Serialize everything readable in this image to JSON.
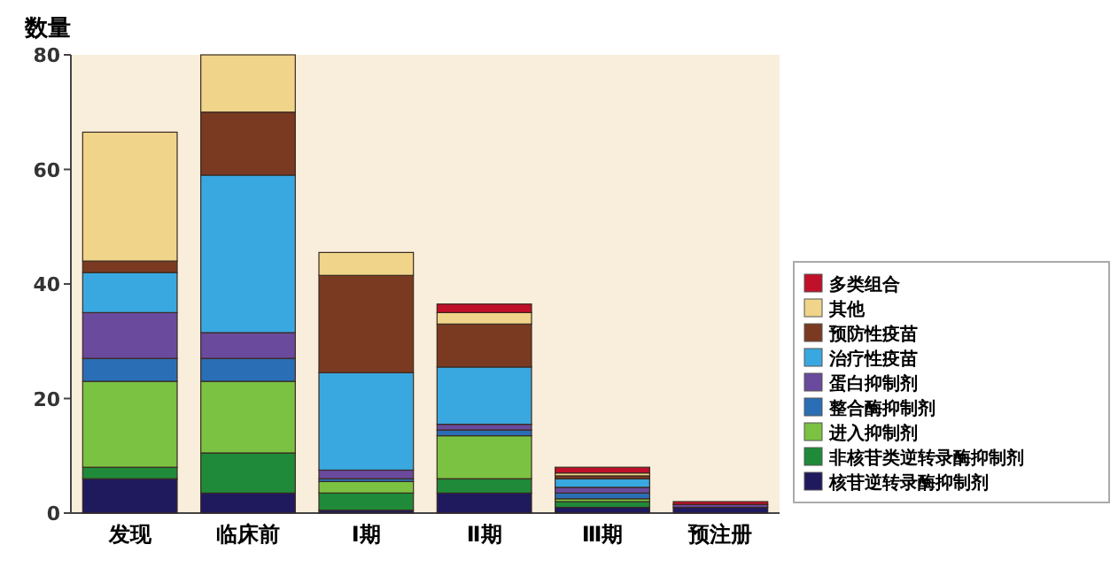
{
  "chart_data": {
    "type": "bar",
    "stacked": true,
    "ylabel": "数量",
    "categories": [
      "发现",
      "临床前",
      "Ⅰ期",
      "Ⅱ期",
      "Ⅲ期",
      "预注册"
    ],
    "ylim": [
      0,
      80
    ],
    "yticks": [
      0,
      20,
      40,
      60,
      80
    ],
    "legend": "right",
    "series": [
      {
        "name": "核苷逆转录酶抑制剂",
        "color": "#1f1a5e",
        "values": [
          6,
          3.5,
          0.5,
          3.5,
          1,
          1
        ]
      },
      {
        "name": "非核苷类逆转录酶抑制剂",
        "color": "#1f8a3a",
        "values": [
          2,
          7,
          3,
          2.5,
          1,
          0
        ]
      },
      {
        "name": "进入抑制剂",
        "color": "#7cc242",
        "values": [
          15,
          12.5,
          2,
          7.5,
          0.5,
          0
        ]
      },
      {
        "name": "整合酶抑制剂",
        "color": "#2a6fb5",
        "values": [
          4,
          4,
          0.5,
          1,
          1,
          0
        ]
      },
      {
        "name": "蛋白抑制剂",
        "color": "#6a4a9c",
        "values": [
          8,
          4.5,
          1.5,
          1,
          1,
          0.5
        ]
      },
      {
        "name": "治疗性疫苗",
        "color": "#3aa8e0",
        "values": [
          7,
          27.5,
          17,
          10,
          1.5,
          0
        ]
      },
      {
        "name": "预防性疫苗",
        "color": "#7a3a22",
        "values": [
          2,
          11,
          17,
          7.5,
          0.5,
          0
        ]
      },
      {
        "name": "其他",
        "color": "#efd48a",
        "values": [
          22.5,
          10,
          4,
          2,
          0.5,
          0
        ]
      },
      {
        "name": "多类组合",
        "color": "#c0102a",
        "values": [
          0,
          0,
          0,
          1.5,
          1,
          0.5
        ]
      }
    ]
  }
}
